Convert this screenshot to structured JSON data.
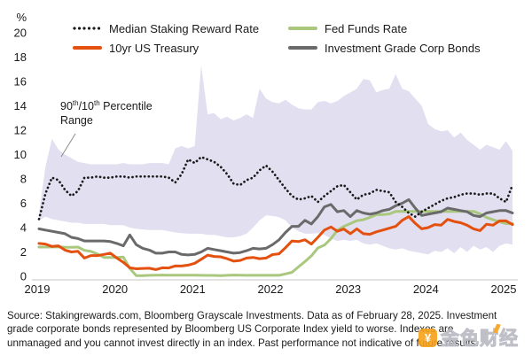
{
  "figure": {
    "annotation": {
      "p1": "90",
      "s1": "th",
      "p2": "/10",
      "s2": "th",
      "p3": " Percentile",
      "line2": "Range"
    },
    "source_lines": [
      "Source: Stakingrewards.com, Bloomberg Grayscale Investments. Data as of February 28, 2025. Investment",
      "grade corporate bonds represented by Bloomberg US Corporate Index yield to worse. Indexes are",
      "unmanaged and you cannot invest directly in an index. Past performance not indicative of future results."
    ],
    "watermark": {
      "icon_glyph": "¥",
      "text": "金色财经"
    }
  },
  "legend": {
    "items": [
      {
        "label": "Median Staking Reward Rate"
      },
      {
        "label": "10yr US Treasury"
      },
      {
        "label": "Fed Funds Rate"
      },
      {
        "label": "Investment Grade Corp Bonds"
      }
    ]
  },
  "chart_data": {
    "type": "line",
    "legend_position": "top",
    "x_axis": {
      "ticks": [
        "2019",
        "2020",
        "2021",
        "2022",
        "2023",
        "2024",
        "2025"
      ],
      "start": "2019-01",
      "end": "2025-02",
      "points": 74
    },
    "y_axis": {
      "unit": "%",
      "ticks": [
        20,
        18,
        16,
        14,
        12,
        10,
        8,
        6,
        4,
        2,
        0
      ],
      "range": [
        0,
        20
      ],
      "grid": false
    },
    "band": {
      "name": "90th/10th Percentile Range",
      "color": "#e1dff0",
      "upper": [
        5.2,
        9.0,
        11.3,
        10.4,
        10.0,
        9.7,
        9.4,
        9.3,
        9.2,
        9.2,
        9.2,
        9.2,
        9.2,
        9.3,
        9.2,
        9.2,
        9.2,
        9.3,
        9.3,
        9.3,
        9.2,
        10.5,
        10.7,
        10.5,
        10.7,
        17.3,
        13.3,
        13.4,
        12.9,
        13.1,
        12.8,
        13.0,
        13.3,
        13.0,
        15.4,
        14.6,
        14.3,
        14.2,
        14.5,
        14.1,
        13.8,
        13.7,
        13.7,
        14.3,
        14.4,
        14.2,
        14.4,
        14.8,
        15.1,
        15.4,
        16.2,
        16.1,
        15.1,
        15.3,
        15.4,
        16.6,
        15.4,
        15.2,
        14.6,
        14.0,
        12.5,
        12.1,
        11.9,
        12.0,
        11.4,
        11.8,
        11.2,
        10.8,
        10.4,
        10.8,
        10.6,
        10.4,
        11.1,
        10.3
      ],
      "lower": [
        4.6,
        4.9,
        4.7,
        4.6,
        4.5,
        4.4,
        4.4,
        4.3,
        4.3,
        4.3,
        4.3,
        4.2,
        4.2,
        4.2,
        4.0,
        3.9,
        3.85,
        3.8,
        3.8,
        3.8,
        3.7,
        3.6,
        3.55,
        3.5,
        3.5,
        3.5,
        3.4,
        3.4,
        3.3,
        3.2,
        3.2,
        3.3,
        3.5,
        4.0,
        4.6,
        5.0,
        4.95,
        4.85,
        4.6,
        4.0,
        3.7,
        3.5,
        3.5,
        3.55,
        3.4,
        3.1,
        2.9,
        3.0,
        2.9,
        3.0,
        2.7,
        2.6,
        2.7,
        2.5,
        2.3,
        2.2,
        2.3,
        2.1,
        2.0,
        1.9,
        1.8,
        2.1,
        2.0,
        2.3,
        1.9,
        2.4,
        2.0,
        2.5,
        2.2,
        2.4,
        2.0,
        2.5,
        2.7,
        2.6
      ]
    },
    "draw_order": [
      2,
      1,
      3,
      0
    ],
    "series": [
      {
        "name": "Median Staking Reward Rate",
        "key": "median-staking-reward-rate",
        "style": "dotted",
        "color": "#1a1a1a",
        "values": [
          4.7,
          6.8,
          8.1,
          7.9,
          7.1,
          6.6,
          7.0,
          8.1,
          8.1,
          8.2,
          8.1,
          8.1,
          8.2,
          8.2,
          8.1,
          8.2,
          8.2,
          8.2,
          8.2,
          8.2,
          8.1,
          7.7,
          8.4,
          9.6,
          9.3,
          9.8,
          9.6,
          9.4,
          9.0,
          8.4,
          7.6,
          7.5,
          7.9,
          8.1,
          8.7,
          9.1,
          8.6,
          7.9,
          7.2,
          6.6,
          6.3,
          6.4,
          6.6,
          6.1,
          6.6,
          7.0,
          7.4,
          7.5,
          6.9,
          6.3,
          6.7,
          6.8,
          7.1,
          7.0,
          6.9,
          6.1,
          5.7,
          5.2,
          4.9,
          5.3,
          5.6,
          5.9,
          6.2,
          6.4,
          6.5,
          6.7,
          6.8,
          6.8,
          6.7,
          6.8,
          6.8,
          6.4,
          6.1,
          7.5
        ]
      },
      {
        "name": "10yr US Treasury",
        "key": "10yr-us-treasury",
        "style": "solid",
        "color": "#e4500e",
        "values": [
          2.7,
          2.65,
          2.45,
          2.5,
          2.15,
          2.0,
          2.05,
          1.5,
          1.7,
          1.7,
          1.8,
          1.9,
          1.5,
          1.15,
          0.7,
          0.62,
          0.65,
          0.66,
          0.55,
          0.7,
          0.68,
          0.85,
          0.84,
          0.92,
          1.07,
          1.4,
          1.74,
          1.63,
          1.6,
          1.45,
          1.24,
          1.3,
          1.5,
          1.55,
          1.45,
          1.5,
          1.78,
          1.85,
          2.35,
          2.9,
          2.85,
          3.0,
          2.65,
          3.2,
          3.8,
          4.05,
          3.7,
          3.88,
          3.5,
          3.9,
          3.5,
          3.45,
          3.65,
          3.8,
          3.95,
          4.1,
          4.6,
          4.9,
          4.35,
          3.9,
          4.0,
          4.25,
          4.2,
          4.68,
          4.5,
          4.4,
          4.2,
          3.9,
          3.75,
          4.28,
          4.2,
          4.55,
          4.55,
          4.25
        ]
      },
      {
        "name": "Fed Funds Rate",
        "key": "fed-funds-rate",
        "style": "solid",
        "color": "#a9c87e",
        "values": [
          2.4,
          2.4,
          2.41,
          2.42,
          2.39,
          2.38,
          2.4,
          2.13,
          2.04,
          1.83,
          1.55,
          1.55,
          1.55,
          1.58,
          0.65,
          0.05,
          0.05,
          0.08,
          0.09,
          0.1,
          0.09,
          0.09,
          0.09,
          0.09,
          0.09,
          0.08,
          0.07,
          0.07,
          0.06,
          0.08,
          0.1,
          0.09,
          0.08,
          0.08,
          0.08,
          0.08,
          0.08,
          0.08,
          0.2,
          0.33,
          0.77,
          1.21,
          1.68,
          2.33,
          2.56,
          3.08,
          3.78,
          4.1,
          4.33,
          4.57,
          4.65,
          4.83,
          5.06,
          5.08,
          5.12,
          5.33,
          5.33,
          5.33,
          5.33,
          5.33,
          5.33,
          5.33,
          5.33,
          5.33,
          5.33,
          5.33,
          5.33,
          5.33,
          5.13,
          4.83,
          4.64,
          4.48,
          4.33,
          4.33
        ]
      },
      {
        "name": "Investment Grade Corp Bonds",
        "key": "investment-grade-corp-bonds",
        "style": "solid",
        "color": "#6a6a6a",
        "values": [
          3.9,
          3.8,
          3.7,
          3.6,
          3.5,
          3.2,
          3.1,
          2.9,
          2.9,
          2.9,
          2.9,
          2.85,
          2.7,
          2.5,
          3.4,
          2.6,
          2.3,
          2.15,
          1.9,
          1.9,
          2.0,
          2.0,
          1.8,
          1.75,
          1.8,
          2.0,
          2.3,
          2.2,
          2.1,
          2.0,
          1.9,
          1.95,
          2.1,
          2.3,
          2.25,
          2.3,
          2.6,
          3.0,
          3.6,
          4.1,
          4.1,
          4.6,
          4.3,
          4.9,
          5.7,
          5.9,
          5.3,
          5.4,
          4.9,
          5.4,
          5.2,
          5.1,
          5.2,
          5.4,
          5.5,
          5.8,
          6.0,
          6.3,
          5.6,
          5.0,
          5.1,
          5.2,
          5.3,
          5.6,
          5.5,
          5.4,
          5.3,
          5.0,
          4.9,
          5.2,
          5.3,
          5.4,
          5.4,
          5.2
        ]
      }
    ]
  }
}
